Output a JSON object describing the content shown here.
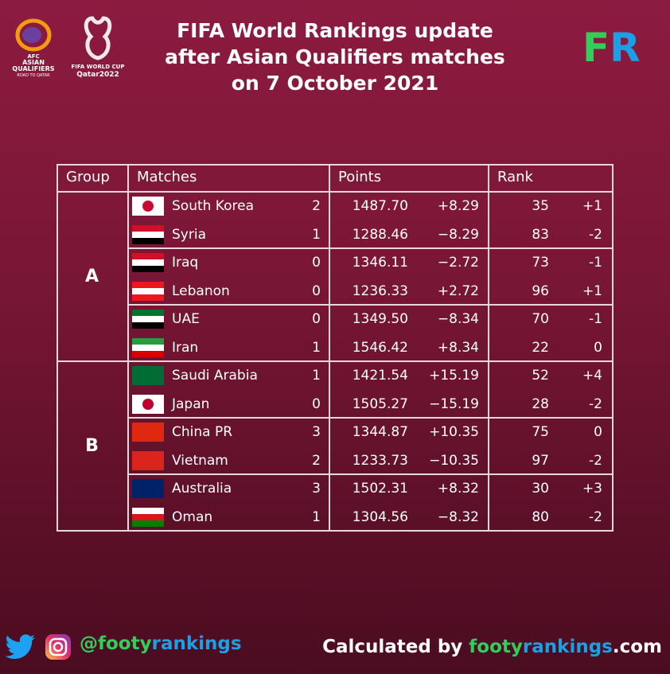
{
  "logos": {
    "afc": [
      "AFC",
      "ASIAN",
      "QUALIFIERS",
      "ROAD TO QATAR"
    ],
    "fifa": [
      "FIFA WORLD CUP",
      "Qatar2022"
    ],
    "fr": [
      "F",
      "R"
    ]
  },
  "title": [
    "FIFA World Rankings update",
    "after Asian Qualifiers matches",
    "on 7 October 2021"
  ],
  "table": {
    "headers": [
      "Group",
      "Matches",
      "Points",
      "Rank"
    ],
    "groups": [
      {
        "name": "A",
        "rows": [
          [
            "South Korea",
            "2",
            "1487.70",
            "+8.29",
            "35",
            "+1"
          ],
          [
            "Syria",
            "1",
            "1288.46",
            "−8.29",
            "83",
            "-2"
          ],
          [
            "Iraq",
            "0",
            "1346.11",
            "−2.72",
            "73",
            "-1"
          ],
          [
            "Lebanon",
            "0",
            "1236.33",
            "+2.72",
            "96",
            "+1"
          ],
          [
            "UAE",
            "0",
            "1349.50",
            "−8.34",
            "70",
            "-1"
          ],
          [
            "Iran",
            "1",
            "1546.42",
            "+8.34",
            "22",
            "0"
          ]
        ]
      },
      {
        "name": "B",
        "rows": [
          [
            "Saudi Arabia",
            "1",
            "1421.54",
            "+15.19",
            "52",
            "+4"
          ],
          [
            "Japan",
            "0",
            "1505.27",
            "−15.19",
            "28",
            "-2"
          ],
          [
            "China PR",
            "3",
            "1344.87",
            "+10.35",
            "75",
            "0"
          ],
          [
            "Vietnam",
            "2",
            "1233.73",
            "−10.35",
            "97",
            "-2"
          ],
          [
            "Australia",
            "3",
            "1502.31",
            "+8.32",
            "30",
            "+3"
          ],
          [
            "Oman",
            "1",
            "1304.56",
            "−8.32",
            "80",
            "-2"
          ]
        ]
      }
    ]
  },
  "footer": {
    "handle": [
      "@footy",
      "rankings"
    ],
    "calc": [
      "Calculated by",
      "footy",
      "rankings",
      ".com"
    ]
  }
}
